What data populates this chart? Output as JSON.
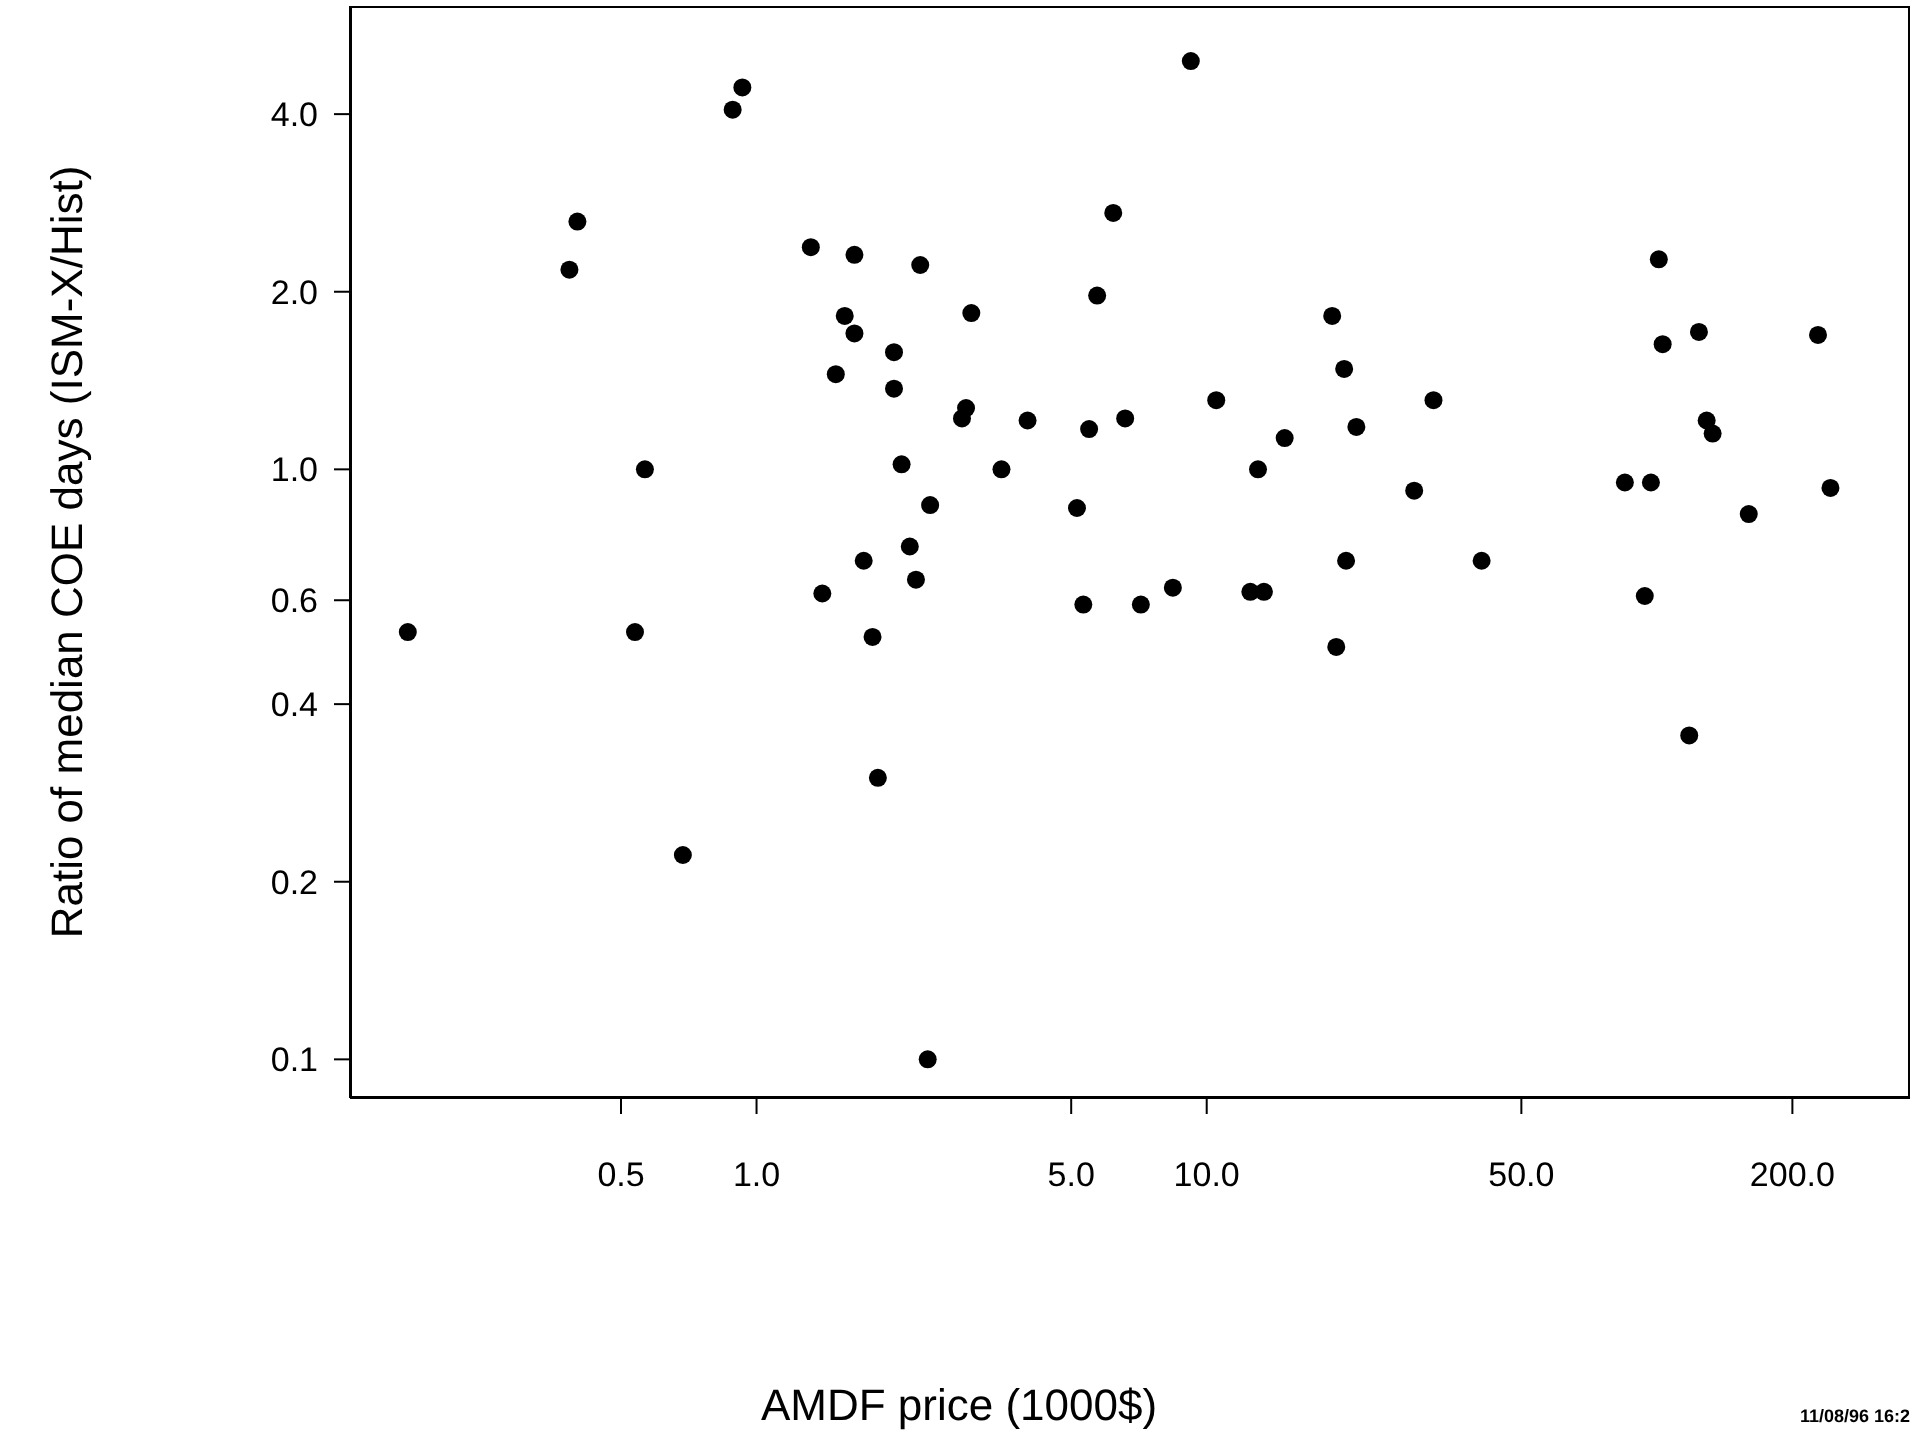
{
  "chart_data": {
    "type": "scatter",
    "xlabel": "AMDF price (1000$)",
    "ylabel": "Ratio of median COE days (ISM-X/Hist)",
    "annotations": [
      "11/08/96 16:2"
    ],
    "log": "xy",
    "grid": false,
    "marker": "circle",
    "xlim": [
      0.125,
      365
    ],
    "ylim": [
      0.086,
      6.1
    ],
    "xticks": [
      0.5,
      {
        "value": 1,
        "label": "1.0"
      },
      {
        "value": 5,
        "label": "5.0"
      },
      {
        "value": 10,
        "label": "10.0"
      },
      {
        "value": 50,
        "label": "50.0"
      },
      {
        "value": 200,
        "label": "200.0"
      }
    ],
    "yticks": [
      0.1,
      0.2,
      0.4,
      0.6,
      {
        "value": 1,
        "label": "1.0"
      },
      {
        "value": 2,
        "label": "2.0"
      },
      {
        "value": 4,
        "label": "4.0"
      }
    ],
    "series": [
      {
        "color": "#000000",
        "x": [
          0.168,
          0.384,
          0.4,
          0.537,
          0.565,
          0.686,
          0.885,
          0.93,
          1.32,
          1.4,
          1.5,
          1.57,
          1.65,
          1.65,
          1.73,
          1.81,
          1.86,
          2.02,
          2.02,
          2.1,
          2.19,
          2.26,
          2.31,
          2.43,
          2.4,
          2.86,
          2.92,
          3.0,
          3.5,
          4.0,
          5.15,
          5.32,
          5.48,
          5.71,
          6.2,
          6.59,
          7.14,
          8.41,
          9.22,
          10.5,
          12.5,
          13.4,
          13.0,
          14.9,
          19.0,
          19.4,
          20.2,
          20.4,
          21.5,
          28.9,
          31.9,
          40.8,
          84.9,
          94,
          97,
          101,
          103,
          118,
          124,
          129,
          133,
          160,
          228,
          243
        ],
        "values": [
          0.53,
          2.18,
          2.63,
          0.53,
          1.0,
          0.222,
          4.07,
          4.44,
          2.38,
          0.616,
          1.45,
          1.82,
          2.31,
          1.7,
          0.7,
          0.52,
          0.3,
          1.58,
          1.37,
          1.02,
          0.74,
          0.65,
          2.22,
          0.87,
          0.1,
          1.22,
          1.27,
          1.84,
          1.0,
          1.21,
          0.86,
          0.59,
          1.17,
          1.97,
          2.72,
          1.22,
          0.59,
          0.63,
          4.92,
          1.31,
          0.62,
          0.62,
          1.0,
          1.13,
          1.82,
          0.5,
          1.48,
          0.7,
          1.18,
          0.92,
          1.31,
          0.7,
          0.95,
          0.61,
          0.95,
          2.27,
          1.63,
          0.354,
          1.71,
          1.21,
          1.15,
          0.84,
          1.69,
          0.93
        ]
      }
    ]
  }
}
